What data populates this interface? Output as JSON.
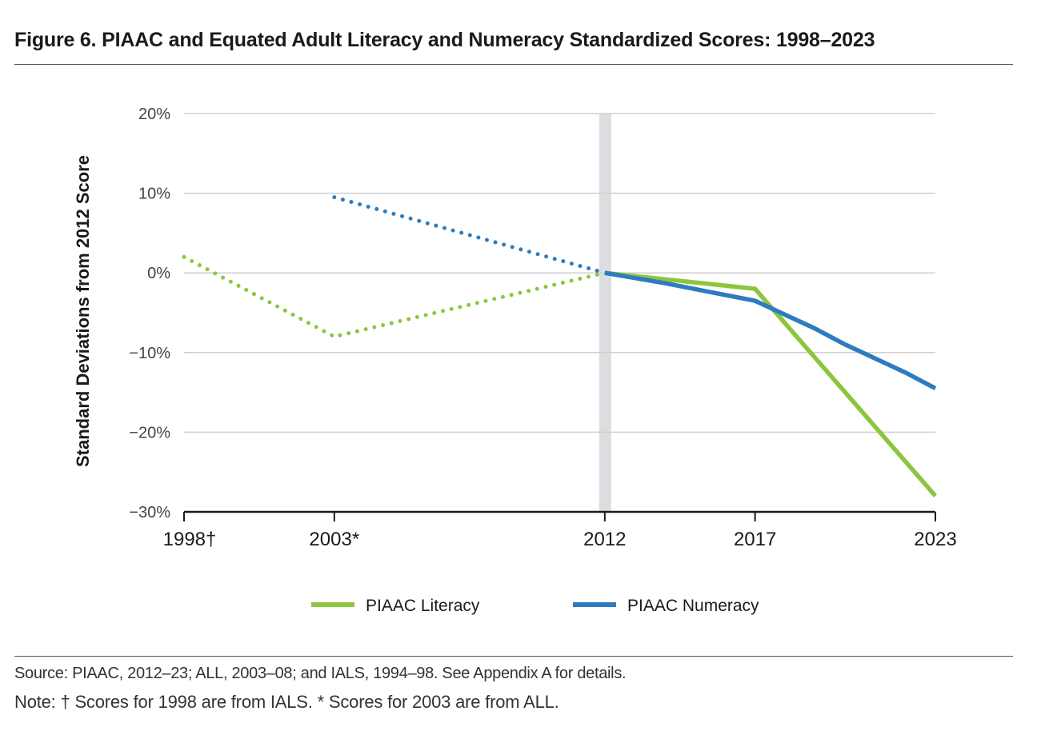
{
  "figure": {
    "title": "Figure 6. PIAAC and Equated Adult Literacy and Numeracy Standardized Scores: 1998–2023",
    "source": "Source: PIAAC, 2012–23; ALL, 2003–08; and IALS, 1994–98. See Appendix A for details.",
    "note": "Note: † Scores for 1998 are from IALS. * Scores for 2003 are from ALL."
  },
  "chart_data": {
    "type": "line",
    "title": "",
    "ylabel": "Standard Deviations from 2012 Score",
    "xlabel": "",
    "ylim": [
      -30,
      20
    ],
    "xlim": [
      1998,
      2023
    ],
    "y_ticks": [
      20,
      10,
      0,
      -10,
      -20,
      -30
    ],
    "y_tick_labels": [
      "20%",
      "10%",
      "0%",
      "−10%",
      "−20%",
      "−30%"
    ],
    "x_ticks": [
      1998,
      2003,
      2012,
      2017,
      2023
    ],
    "x_tick_labels": [
      "1998†",
      "2003*",
      "2012",
      "2017",
      "2023"
    ],
    "grid": true,
    "highlight_band_x": 2012,
    "legend_position": "bottom-center",
    "series": [
      {
        "name": "PIAAC Literacy",
        "color": "#8cc63f",
        "equated_points": [
          {
            "x": 1998,
            "y": 2.0
          },
          {
            "x": 2003,
            "y": -8.0
          },
          {
            "x": 2012,
            "y": 0.0
          }
        ],
        "piaac_points": [
          {
            "x": 2012,
            "y": 0.0
          },
          {
            "x": 2014,
            "y": -0.8
          },
          {
            "x": 2016,
            "y": -1.6
          },
          {
            "x": 2017,
            "y": -2.0
          },
          {
            "x": 2020,
            "y": -15.0
          },
          {
            "x": 2023,
            "y": -28.0
          }
        ]
      },
      {
        "name": "PIAAC Numeracy",
        "color": "#2e7bbf",
        "equated_points": [
          {
            "x": 2003,
            "y": 9.5
          },
          {
            "x": 2012,
            "y": 0.0
          }
        ],
        "piaac_points": [
          {
            "x": 2012,
            "y": 0.0
          },
          {
            "x": 2014,
            "y": -1.3
          },
          {
            "x": 2017,
            "y": -3.5
          },
          {
            "x": 2019,
            "y": -7.0
          },
          {
            "x": 2020,
            "y": -9.0
          },
          {
            "x": 2022,
            "y": -12.5
          },
          {
            "x": 2023,
            "y": -14.5
          }
        ]
      }
    ]
  }
}
